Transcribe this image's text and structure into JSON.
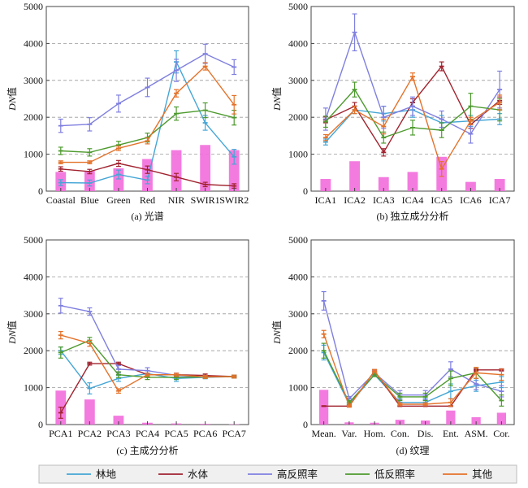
{
  "series_colors": {
    "forest": "#45a6d6",
    "water": "#a1232f",
    "high": "#7f7fe0",
    "low": "#4d9a2e",
    "other": "#e4722a",
    "bar": "#f26ddc"
  },
  "legend": [
    {
      "key": "forest",
      "label": "林地"
    },
    {
      "key": "water",
      "label": "水体"
    },
    {
      "key": "high",
      "label": "高反照率"
    },
    {
      "key": "low",
      "label": "低反照率"
    },
    {
      "key": "other",
      "label": "其他"
    }
  ],
  "chart_data": [
    {
      "type": "line",
      "caption": "(a) 光谱",
      "ylabel": "DN值",
      "ylim": [
        0,
        5000
      ],
      "yticks": [
        0,
        1000,
        2000,
        3000,
        4000,
        5000
      ],
      "grid": "horizontal dashed",
      "categories": [
        "Coastal",
        "Blue",
        "Green",
        "Red",
        "NIR",
        "SWIR1",
        "SWIR2"
      ],
      "bars": [
        520,
        550,
        620,
        870,
        1110,
        1250,
        1110
      ],
      "series": [
        {
          "key": "forest",
          "values": [
            230,
            220,
            450,
            300,
            3500,
            1850,
            930
          ],
          "errors": [
            80,
            80,
            120,
            100,
            300,
            200,
            200
          ]
        },
        {
          "key": "water",
          "values": [
            600,
            530,
            750,
            580,
            380,
            180,
            140
          ],
          "errors": [
            60,
            60,
            80,
            100,
            100,
            60,
            60
          ]
        },
        {
          "key": "high",
          "values": [
            1770,
            1810,
            2370,
            2810,
            3270,
            3720,
            3360
          ],
          "errors": [
            180,
            180,
            230,
            250,
            300,
            260,
            200
          ]
        },
        {
          "key": "low",
          "values": [
            1090,
            1050,
            1250,
            1450,
            2100,
            2190,
            1990
          ],
          "errors": [
            100,
            100,
            100,
            120,
            180,
            200,
            200
          ]
        },
        {
          "key": "other",
          "values": [
            780,
            780,
            1160,
            1360,
            2650,
            3380,
            2340
          ],
          "errors": [
            40,
            40,
            60,
            80,
            100,
            100,
            250
          ]
        }
      ]
    },
    {
      "type": "line",
      "caption": "(b) 独立成分分析",
      "ylabel": "DN值",
      "ylim": [
        0,
        5000
      ],
      "yticks": [
        0,
        1000,
        2000,
        3000,
        4000,
        5000
      ],
      "grid": "horizontal dashed",
      "categories": [
        "ICA1",
        "ICA2",
        "ICA3",
        "ICA4",
        "ICA5",
        "ICA6",
        "ICA7"
      ],
      "bars": [
        330,
        810,
        380,
        520,
        930,
        250,
        330
      ],
      "series": [
        {
          "key": "forest",
          "values": [
            1330,
            2200,
            2100,
            2200,
            1850,
            1900,
            1950
          ],
          "errors": [
            80,
            100,
            200,
            200,
            200,
            150,
            150
          ]
        },
        {
          "key": "water",
          "values": [
            1930,
            2300,
            1050,
            2400,
            3380,
            1800,
            2450
          ],
          "errors": [
            80,
            100,
            100,
            100,
            120,
            100,
            100
          ]
        },
        {
          "key": "high",
          "values": [
            1950,
            4300,
            2000,
            2300,
            1950,
            1550,
            2750
          ],
          "errors": [
            300,
            500,
            300,
            250,
            220,
            250,
            500
          ]
        },
        {
          "key": "low",
          "values": [
            1880,
            2750,
            1450,
            1720,
            1650,
            2300,
            2200
          ],
          "errors": [
            150,
            200,
            150,
            200,
            200,
            350,
            300
          ]
        },
        {
          "key": "other",
          "values": [
            1450,
            2200,
            1750,
            3100,
            600,
            1900,
            2400
          ],
          "errors": [
            80,
            100,
            200,
            100,
            200,
            100,
            200
          ]
        }
      ]
    },
    {
      "type": "line",
      "caption": "(c) 主成分分析",
      "ylabel": "DN值",
      "ylim": [
        0,
        5000
      ],
      "yticks": [
        0,
        1000,
        2000,
        3000,
        4000,
        5000
      ],
      "grid": "horizontal dashed",
      "categories": [
        "PCA1",
        "PCA2",
        "PCA3",
        "PCA4",
        "PCA5",
        "PCA6",
        "PCA7"
      ],
      "bars": [
        920,
        680,
        240,
        50,
        30,
        20,
        10
      ],
      "series": [
        {
          "key": "forest",
          "values": [
            2000,
            980,
            1250,
            1380,
            1250,
            1280,
            1300
          ],
          "errors": [
            100,
            150,
            80,
            80,
            80,
            40,
            40
          ]
        },
        {
          "key": "water",
          "values": [
            320,
            1650,
            1650,
            1350,
            1350,
            1330,
            1300
          ],
          "errors": [
            150,
            40,
            40,
            40,
            40,
            40,
            40
          ]
        },
        {
          "key": "high",
          "values": [
            3220,
            3060,
            1500,
            1460,
            1330,
            1290,
            1300
          ],
          "errors": [
            200,
            100,
            100,
            80,
            60,
            40,
            40
          ]
        },
        {
          "key": "low",
          "values": [
            1950,
            2280,
            1350,
            1280,
            1280,
            1290,
            1300
          ],
          "errors": [
            150,
            80,
            80,
            60,
            60,
            40,
            40
          ]
        },
        {
          "key": "other",
          "values": [
            2420,
            2200,
            910,
            1350,
            1350,
            1290,
            1300
          ],
          "errors": [
            100,
            80,
            60,
            40,
            40,
            40,
            40
          ]
        }
      ]
    },
    {
      "type": "line",
      "caption": "(d) 纹理",
      "ylabel": "DN值",
      "ylim": [
        0,
        5000
      ],
      "yticks": [
        0,
        1000,
        2000,
        3000,
        4000,
        5000
      ],
      "grid": "horizontal dashed",
      "categories": [
        "Mean.",
        "Var.",
        "Hom.",
        "Con.",
        "Dis.",
        "Ent.",
        "ASM.",
        "Cor."
      ],
      "bars": [
        940,
        60,
        50,
        130,
        110,
        380,
        200,
        320
      ],
      "series": [
        {
          "key": "forest",
          "values": [
            1950,
            550,
            1350,
            600,
            600,
            900,
            1050,
            1150
          ],
          "errors": [
            200,
            50,
            50,
            100,
            100,
            200,
            150,
            150
          ]
        },
        {
          "key": "water",
          "values": [
            500,
            500,
            1450,
            500,
            500,
            500,
            1480,
            1480
          ],
          "errors": [
            10,
            10,
            40,
            10,
            10,
            10,
            30,
            30
          ]
        },
        {
          "key": "high",
          "values": [
            3350,
            700,
            1400,
            800,
            800,
            1500,
            1100,
            900
          ],
          "errors": [
            250,
            60,
            60,
            120,
            120,
            200,
            150,
            150
          ]
        },
        {
          "key": "low",
          "values": [
            2000,
            600,
            1350,
            750,
            750,
            1250,
            1400,
            650
          ],
          "errors": [
            200,
            50,
            50,
            100,
            100,
            200,
            150,
            150
          ]
        },
        {
          "key": "other",
          "values": [
            2450,
            500,
            1450,
            550,
            550,
            600,
            1400,
            1350
          ],
          "errors": [
            100,
            30,
            40,
            40,
            40,
            100,
            150,
            150
          ]
        }
      ]
    }
  ]
}
